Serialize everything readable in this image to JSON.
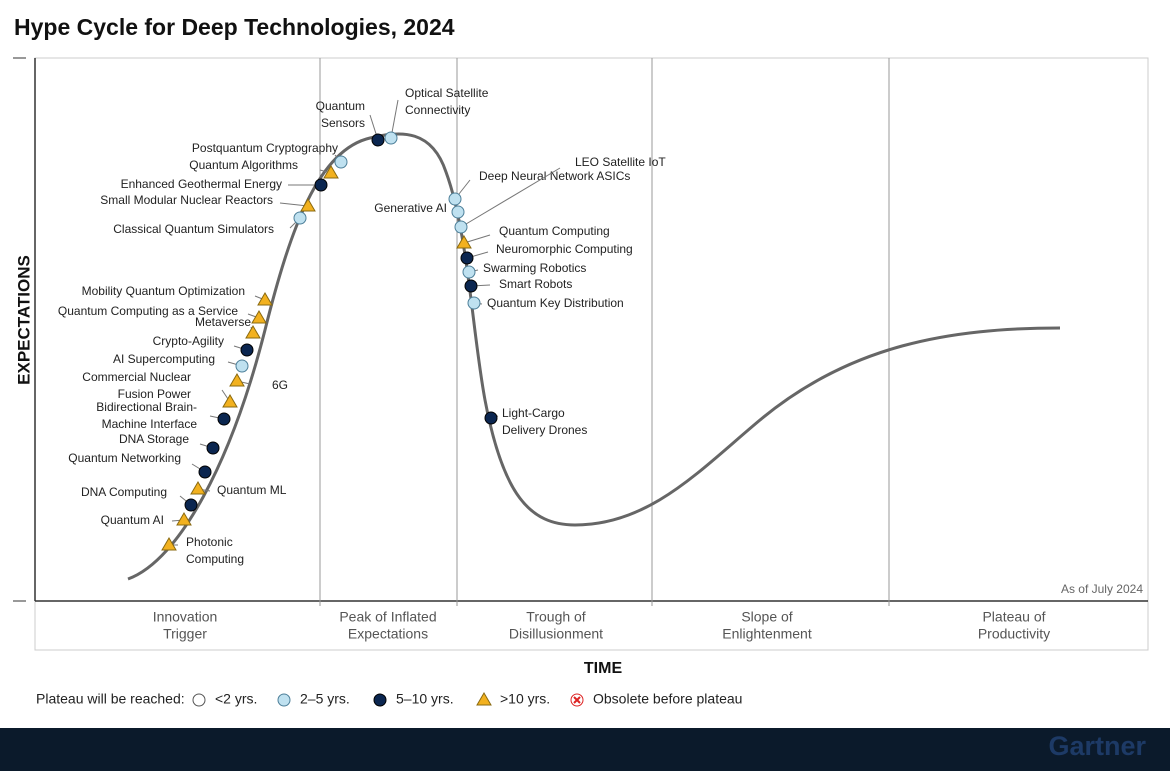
{
  "title": "Hype Cycle for Deep Technologies, 2024",
  "y_axis_label": "EXPECTATIONS",
  "x_axis_label": "TIME",
  "as_of": "As of July 2024",
  "phases": [
    [
      "Innovation",
      "Trigger"
    ],
    [
      "Peak of Inflated",
      "Expectations"
    ],
    [
      "Trough of",
      "Disillusionment"
    ],
    [
      "Slope of",
      "Enlightenment"
    ],
    [
      "Plateau of",
      "Productivity"
    ]
  ],
  "legend": {
    "title": "Plateau will be reached:",
    "items": [
      "<2 yrs.",
      "2–5 yrs.",
      "5–10 yrs.",
      ">10 yrs.",
      "Obsolete before plateau"
    ]
  },
  "technologies": [
    {
      "label": [
        "Optical Satellite",
        "Connectivity"
      ],
      "plateau": "2–5 yrs."
    },
    {
      "label": [
        "Quantum",
        "Sensors"
      ],
      "plateau": "5–10 yrs."
    },
    {
      "label": [
        "Postquantum Cryptography"
      ],
      "plateau": "2–5 yrs."
    },
    {
      "label": [
        "Quantum Algorithms"
      ],
      "plateau": ">10 yrs."
    },
    {
      "label": [
        "Enhanced Geothermal Energy"
      ],
      "plateau": "5–10 yrs."
    },
    {
      "label": [
        "Small Modular Nuclear Reactors"
      ],
      "plateau": ">10 yrs."
    },
    {
      "label": [
        "Classical Quantum Simulators"
      ],
      "plateau": "2–5 yrs."
    },
    {
      "label": [
        "Mobility Quantum Optimization"
      ],
      "plateau": ">10 yrs."
    },
    {
      "label": [
        "Quantum Computing as a Service"
      ],
      "plateau": ">10 yrs."
    },
    {
      "label": [
        "Metaverse"
      ],
      "plateau": ">10 yrs."
    },
    {
      "label": [
        "Crypto-Agility"
      ],
      "plateau": "5–10 yrs."
    },
    {
      "label": [
        "AI Supercomputing"
      ],
      "plateau": "2–5 yrs."
    },
    {
      "label": [
        "6G"
      ],
      "plateau": ">10 yrs."
    },
    {
      "label": [
        "Commercial Nuclear",
        "Fusion Power"
      ],
      "plateau": ">10 yrs."
    },
    {
      "label": [
        "Bidirectional Brain-",
        "Machine Interface"
      ],
      "plateau": "5–10 yrs."
    },
    {
      "label": [
        "DNA Storage"
      ],
      "plateau": "5–10 yrs."
    },
    {
      "label": [
        "Quantum Networking"
      ],
      "plateau": "5–10 yrs."
    },
    {
      "label": [
        "Quantum ML"
      ],
      "plateau": ">10 yrs."
    },
    {
      "label": [
        "DNA Computing"
      ],
      "plateau": "5–10 yrs."
    },
    {
      "label": [
        "Quantum AI"
      ],
      "plateau": ">10 yrs."
    },
    {
      "label": [
        "Photonic",
        "Computing"
      ],
      "plateau": ">10 yrs."
    },
    {
      "label": [
        "Deep Neural Network ASICs"
      ],
      "plateau": "2–5 yrs."
    },
    {
      "label": [
        "Generative AI"
      ],
      "plateau": "2–5 yrs."
    },
    {
      "label": [
        "LEO Satellite IoT"
      ],
      "plateau": "2–5 yrs."
    },
    {
      "label": [
        "Quantum Computing"
      ],
      "plateau": ">10 yrs."
    },
    {
      "label": [
        "Neuromorphic Computing"
      ],
      "plateau": "5–10 yrs."
    },
    {
      "label": [
        "Swarming Robotics"
      ],
      "plateau": "2–5 yrs."
    },
    {
      "label": [
        "Smart Robots"
      ],
      "plateau": "5–10 yrs."
    },
    {
      "label": [
        "Quantum Key Distribution"
      ],
      "plateau": "2–5 yrs."
    },
    {
      "label": [
        "Light-Cargo",
        "Delivery Drones"
      ],
      "plateau": "5–10 yrs."
    }
  ],
  "brand": "Gartner"
}
